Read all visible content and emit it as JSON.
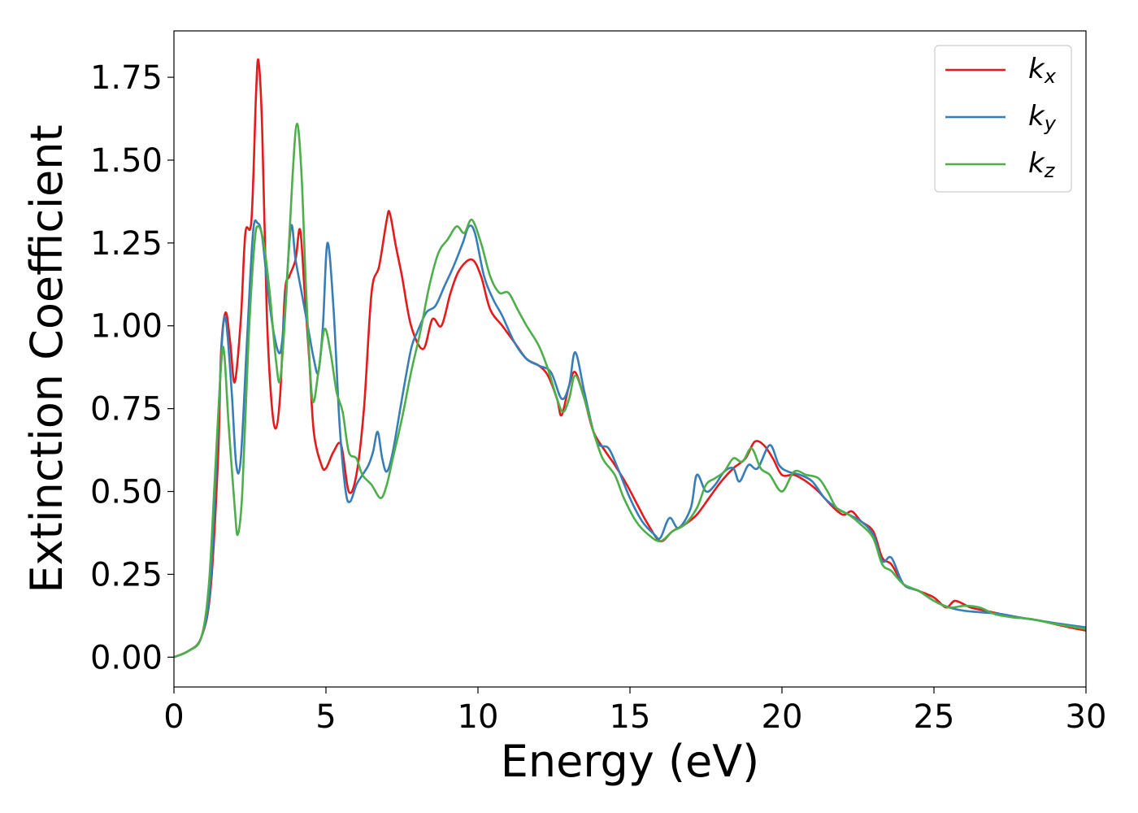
{
  "chart_data": {
    "type": "line",
    "xlabel": "Energy (eV)",
    "ylabel": "Extinction Coefficient",
    "xlim": [
      0,
      30
    ],
    "ylim": [
      -0.09,
      1.89
    ],
    "x_ticks": [
      "0",
      "5",
      "10",
      "15",
      "20",
      "25",
      "30"
    ],
    "y_ticks": [
      "0.00",
      "0.25",
      "0.50",
      "0.75",
      "1.00",
      "1.25",
      "1.50",
      "1.75"
    ],
    "grid": false,
    "legend_position": "top-right",
    "series": [
      {
        "name": "k",
        "subscript": "x",
        "color": "#e41a1c",
        "points": [
          [
            0,
            0
          ],
          [
            0.5,
            0.02
          ],
          [
            0.9,
            0.06
          ],
          [
            1.2,
            0.2
          ],
          [
            1.45,
            0.6
          ],
          [
            1.55,
            0.92
          ],
          [
            1.7,
            1.04
          ],
          [
            1.85,
            0.95
          ],
          [
            2.0,
            0.83
          ],
          [
            2.2,
            1.02
          ],
          [
            2.35,
            1.28
          ],
          [
            2.55,
            1.32
          ],
          [
            2.7,
            1.7
          ],
          [
            2.78,
            1.8
          ],
          [
            2.9,
            1.6
          ],
          [
            3.05,
            1.05
          ],
          [
            3.2,
            0.78
          ],
          [
            3.35,
            0.69
          ],
          [
            3.5,
            0.8
          ],
          [
            3.65,
            1.1
          ],
          [
            3.8,
            1.15
          ],
          [
            4.0,
            1.2
          ],
          [
            4.15,
            1.29
          ],
          [
            4.3,
            1.1
          ],
          [
            4.45,
            0.9
          ],
          [
            4.6,
            0.68
          ],
          [
            4.85,
            0.58
          ],
          [
            5.0,
            0.57
          ],
          [
            5.25,
            0.62
          ],
          [
            5.5,
            0.64
          ],
          [
            5.75,
            0.5
          ],
          [
            6.0,
            0.55
          ],
          [
            6.25,
            0.75
          ],
          [
            6.5,
            1.1
          ],
          [
            6.75,
            1.18
          ],
          [
            7.0,
            1.32
          ],
          [
            7.1,
            1.34
          ],
          [
            7.3,
            1.24
          ],
          [
            7.5,
            1.15
          ],
          [
            7.8,
            1.0
          ],
          [
            8.2,
            0.93
          ],
          [
            8.5,
            1.02
          ],
          [
            8.8,
            1.0
          ],
          [
            9.1,
            1.1
          ],
          [
            9.4,
            1.17
          ],
          [
            9.8,
            1.2
          ],
          [
            10.1,
            1.15
          ],
          [
            10.4,
            1.05
          ],
          [
            10.8,
            1.0
          ],
          [
            11.2,
            0.95
          ],
          [
            11.6,
            0.9
          ],
          [
            12.0,
            0.88
          ],
          [
            12.3,
            0.85
          ],
          [
            12.6,
            0.78
          ],
          [
            12.75,
            0.73
          ],
          [
            13.0,
            0.82
          ],
          [
            13.2,
            0.86
          ],
          [
            13.5,
            0.78
          ],
          [
            13.8,
            0.68
          ],
          [
            14.2,
            0.62
          ],
          [
            14.5,
            0.58
          ],
          [
            14.9,
            0.52
          ],
          [
            15.3,
            0.45
          ],
          [
            15.6,
            0.4
          ],
          [
            16.0,
            0.35
          ],
          [
            16.4,
            0.38
          ],
          [
            16.8,
            0.4
          ],
          [
            17.2,
            0.43
          ],
          [
            17.6,
            0.48
          ],
          [
            18.0,
            0.53
          ],
          [
            18.4,
            0.57
          ],
          [
            18.8,
            0.6
          ],
          [
            19.1,
            0.65
          ],
          [
            19.4,
            0.64
          ],
          [
            19.7,
            0.6
          ],
          [
            20.0,
            0.55
          ],
          [
            20.4,
            0.55
          ],
          [
            20.8,
            0.53
          ],
          [
            21.2,
            0.5
          ],
          [
            21.6,
            0.46
          ],
          [
            22.0,
            0.43
          ],
          [
            22.3,
            0.44
          ],
          [
            22.6,
            0.41
          ],
          [
            23.0,
            0.38
          ],
          [
            23.3,
            0.3
          ],
          [
            23.6,
            0.28
          ],
          [
            24.0,
            0.22
          ],
          [
            24.5,
            0.2
          ],
          [
            25.0,
            0.18
          ],
          [
            25.4,
            0.15
          ],
          [
            25.7,
            0.17
          ],
          [
            26.2,
            0.15
          ],
          [
            26.7,
            0.14
          ],
          [
            27.2,
            0.13
          ],
          [
            27.8,
            0.12
          ],
          [
            28.5,
            0.11
          ],
          [
            29.2,
            0.095
          ],
          [
            30.0,
            0.08
          ]
        ]
      },
      {
        "name": "k",
        "subscript": "y",
        "color": "#377eb8",
        "points": [
          [
            0,
            0
          ],
          [
            0.5,
            0.02
          ],
          [
            0.9,
            0.06
          ],
          [
            1.2,
            0.22
          ],
          [
            1.45,
            0.7
          ],
          [
            1.6,
            0.98
          ],
          [
            1.72,
            1.01
          ],
          [
            1.9,
            0.8
          ],
          [
            2.05,
            0.58
          ],
          [
            2.2,
            0.6
          ],
          [
            2.4,
            0.95
          ],
          [
            2.6,
            1.28
          ],
          [
            2.75,
            1.31
          ],
          [
            2.9,
            1.27
          ],
          [
            3.1,
            1.1
          ],
          [
            3.3,
            0.97
          ],
          [
            3.5,
            0.92
          ],
          [
            3.65,
            1.05
          ],
          [
            3.85,
            1.3
          ],
          [
            4.0,
            1.2
          ],
          [
            4.2,
            1.1
          ],
          [
            4.4,
            1.0
          ],
          [
            4.6,
            0.9
          ],
          [
            4.75,
            0.86
          ],
          [
            4.9,
            1.0
          ],
          [
            5.05,
            1.25
          ],
          [
            5.25,
            1.05
          ],
          [
            5.45,
            0.7
          ],
          [
            5.65,
            0.5
          ],
          [
            5.8,
            0.47
          ],
          [
            6.0,
            0.52
          ],
          [
            6.2,
            0.55
          ],
          [
            6.4,
            0.58
          ],
          [
            6.55,
            0.62
          ],
          [
            6.7,
            0.68
          ],
          [
            6.85,
            0.6
          ],
          [
            7.0,
            0.56
          ],
          [
            7.2,
            0.62
          ],
          [
            7.5,
            0.78
          ],
          [
            7.8,
            0.93
          ],
          [
            8.0,
            0.98
          ],
          [
            8.3,
            1.04
          ],
          [
            8.6,
            1.06
          ],
          [
            8.9,
            1.12
          ],
          [
            9.2,
            1.18
          ],
          [
            9.5,
            1.25
          ],
          [
            9.7,
            1.3
          ],
          [
            9.9,
            1.28
          ],
          [
            10.2,
            1.15
          ],
          [
            10.5,
            1.08
          ],
          [
            10.8,
            1.03
          ],
          [
            11.2,
            0.95
          ],
          [
            11.6,
            0.9
          ],
          [
            12.0,
            0.88
          ],
          [
            12.4,
            0.86
          ],
          [
            12.75,
            0.78
          ],
          [
            13.0,
            0.82
          ],
          [
            13.2,
            0.92
          ],
          [
            13.5,
            0.8
          ],
          [
            13.8,
            0.68
          ],
          [
            14.0,
            0.64
          ],
          [
            14.3,
            0.63
          ],
          [
            14.6,
            0.57
          ],
          [
            15.0,
            0.48
          ],
          [
            15.4,
            0.41
          ],
          [
            15.8,
            0.37
          ],
          [
            16.0,
            0.36
          ],
          [
            16.3,
            0.42
          ],
          [
            16.6,
            0.39
          ],
          [
            17.0,
            0.45
          ],
          [
            17.2,
            0.55
          ],
          [
            17.5,
            0.5
          ],
          [
            17.8,
            0.52
          ],
          [
            18.1,
            0.56
          ],
          [
            18.4,
            0.57
          ],
          [
            18.6,
            0.53
          ],
          [
            18.9,
            0.58
          ],
          [
            19.2,
            0.57
          ],
          [
            19.6,
            0.64
          ],
          [
            19.9,
            0.58
          ],
          [
            20.2,
            0.56
          ],
          [
            20.6,
            0.55
          ],
          [
            21.0,
            0.53
          ],
          [
            21.4,
            0.48
          ],
          [
            21.8,
            0.45
          ],
          [
            22.2,
            0.43
          ],
          [
            22.6,
            0.41
          ],
          [
            23.0,
            0.37
          ],
          [
            23.3,
            0.29
          ],
          [
            23.6,
            0.3
          ],
          [
            24.0,
            0.22
          ],
          [
            24.5,
            0.2
          ],
          [
            25.0,
            0.17
          ],
          [
            25.5,
            0.15
          ],
          [
            26.0,
            0.14
          ],
          [
            26.6,
            0.135
          ],
          [
            27.2,
            0.13
          ],
          [
            27.8,
            0.12
          ],
          [
            28.5,
            0.11
          ],
          [
            29.2,
            0.1
          ],
          [
            30.0,
            0.09
          ]
        ]
      },
      {
        "name": "k",
        "subscript": "z",
        "color": "#4daf4a",
        "points": [
          [
            0,
            0
          ],
          [
            0.5,
            0.02
          ],
          [
            0.9,
            0.06
          ],
          [
            1.15,
            0.22
          ],
          [
            1.35,
            0.55
          ],
          [
            1.55,
            0.88
          ],
          [
            1.65,
            0.92
          ],
          [
            1.8,
            0.7
          ],
          [
            2.0,
            0.45
          ],
          [
            2.1,
            0.37
          ],
          [
            2.25,
            0.5
          ],
          [
            2.45,
            0.95
          ],
          [
            2.65,
            1.25
          ],
          [
            2.78,
            1.3
          ],
          [
            2.95,
            1.25
          ],
          [
            3.15,
            1.1
          ],
          [
            3.35,
            0.9
          ],
          [
            3.5,
            0.84
          ],
          [
            3.7,
            1.1
          ],
          [
            3.9,
            1.45
          ],
          [
            4.05,
            1.61
          ],
          [
            4.2,
            1.45
          ],
          [
            4.35,
            1.1
          ],
          [
            4.55,
            0.78
          ],
          [
            4.75,
            0.86
          ],
          [
            4.95,
            0.99
          ],
          [
            5.15,
            0.92
          ],
          [
            5.35,
            0.8
          ],
          [
            5.55,
            0.74
          ],
          [
            5.75,
            0.62
          ],
          [
            6.0,
            0.6
          ],
          [
            6.2,
            0.55
          ],
          [
            6.5,
            0.52
          ],
          [
            6.8,
            0.48
          ],
          [
            7.0,
            0.52
          ],
          [
            7.2,
            0.6
          ],
          [
            7.5,
            0.72
          ],
          [
            7.8,
            0.86
          ],
          [
            8.1,
            0.98
          ],
          [
            8.4,
            1.12
          ],
          [
            8.7,
            1.22
          ],
          [
            9.0,
            1.26
          ],
          [
            9.3,
            1.3
          ],
          [
            9.55,
            1.28
          ],
          [
            9.8,
            1.32
          ],
          [
            10.1,
            1.25
          ],
          [
            10.4,
            1.15
          ],
          [
            10.7,
            1.1
          ],
          [
            11.0,
            1.1
          ],
          [
            11.3,
            1.05
          ],
          [
            11.6,
            1.0
          ],
          [
            12.0,
            0.94
          ],
          [
            12.3,
            0.87
          ],
          [
            12.6,
            0.78
          ],
          [
            12.8,
            0.74
          ],
          [
            13.0,
            0.78
          ],
          [
            13.2,
            0.85
          ],
          [
            13.5,
            0.78
          ],
          [
            13.8,
            0.68
          ],
          [
            14.1,
            0.6
          ],
          [
            14.5,
            0.55
          ],
          [
            14.8,
            0.48
          ],
          [
            15.2,
            0.41
          ],
          [
            15.6,
            0.37
          ],
          [
            16.0,
            0.35
          ],
          [
            16.4,
            0.38
          ],
          [
            16.8,
            0.4
          ],
          [
            17.2,
            0.45
          ],
          [
            17.5,
            0.52
          ],
          [
            17.8,
            0.54
          ],
          [
            18.1,
            0.56
          ],
          [
            18.4,
            0.6
          ],
          [
            18.7,
            0.59
          ],
          [
            19.0,
            0.63
          ],
          [
            19.3,
            0.57
          ],
          [
            19.6,
            0.55
          ],
          [
            20.0,
            0.5
          ],
          [
            20.4,
            0.56
          ],
          [
            20.8,
            0.55
          ],
          [
            21.2,
            0.54
          ],
          [
            21.5,
            0.5
          ],
          [
            21.8,
            0.45
          ],
          [
            22.2,
            0.43
          ],
          [
            22.6,
            0.4
          ],
          [
            23.0,
            0.36
          ],
          [
            23.3,
            0.28
          ],
          [
            23.6,
            0.26
          ],
          [
            24.0,
            0.22
          ],
          [
            24.5,
            0.2
          ],
          [
            25.0,
            0.17
          ],
          [
            25.5,
            0.15
          ],
          [
            26.0,
            0.155
          ],
          [
            26.5,
            0.15
          ],
          [
            27.0,
            0.13
          ],
          [
            27.6,
            0.12
          ],
          [
            28.2,
            0.115
          ],
          [
            29.0,
            0.1
          ],
          [
            30.0,
            0.085
          ]
        ]
      }
    ]
  }
}
